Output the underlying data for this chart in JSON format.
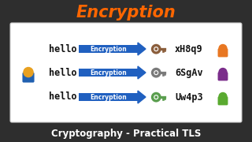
{
  "title": "Encryption",
  "title_color": "#FF6600",
  "subtitle": "Cryptography - Practical TLS",
  "subtitle_color": "#ffffff",
  "bg_color": "#2e2e2e",
  "box_bg": "#ffffff",
  "box_border": "#cccccc",
  "rows": [
    {
      "hello": "hello",
      "cipher": "xH8q9",
      "key_color": "#8B5E3C",
      "person_color": "#E87722"
    },
    {
      "hello": "hello",
      "cipher": "6SgAv",
      "key_color": "#7a7a7a",
      "person_color": "#7B2D8B"
    },
    {
      "hello": "hello",
      "cipher": "Uw4p3",
      "key_color": "#5a9e4e",
      "person_color": "#5aaa30"
    }
  ],
  "arrow_color": "#2060C0",
  "arrow_label": "Encryption",
  "sender_head_color": "#E8A020",
  "sender_body_color": "#2060B0",
  "hello_font_size": 8.5,
  "cipher_font_size": 8.5,
  "title_fontsize": 15,
  "subtitle_fontsize": 8.5
}
